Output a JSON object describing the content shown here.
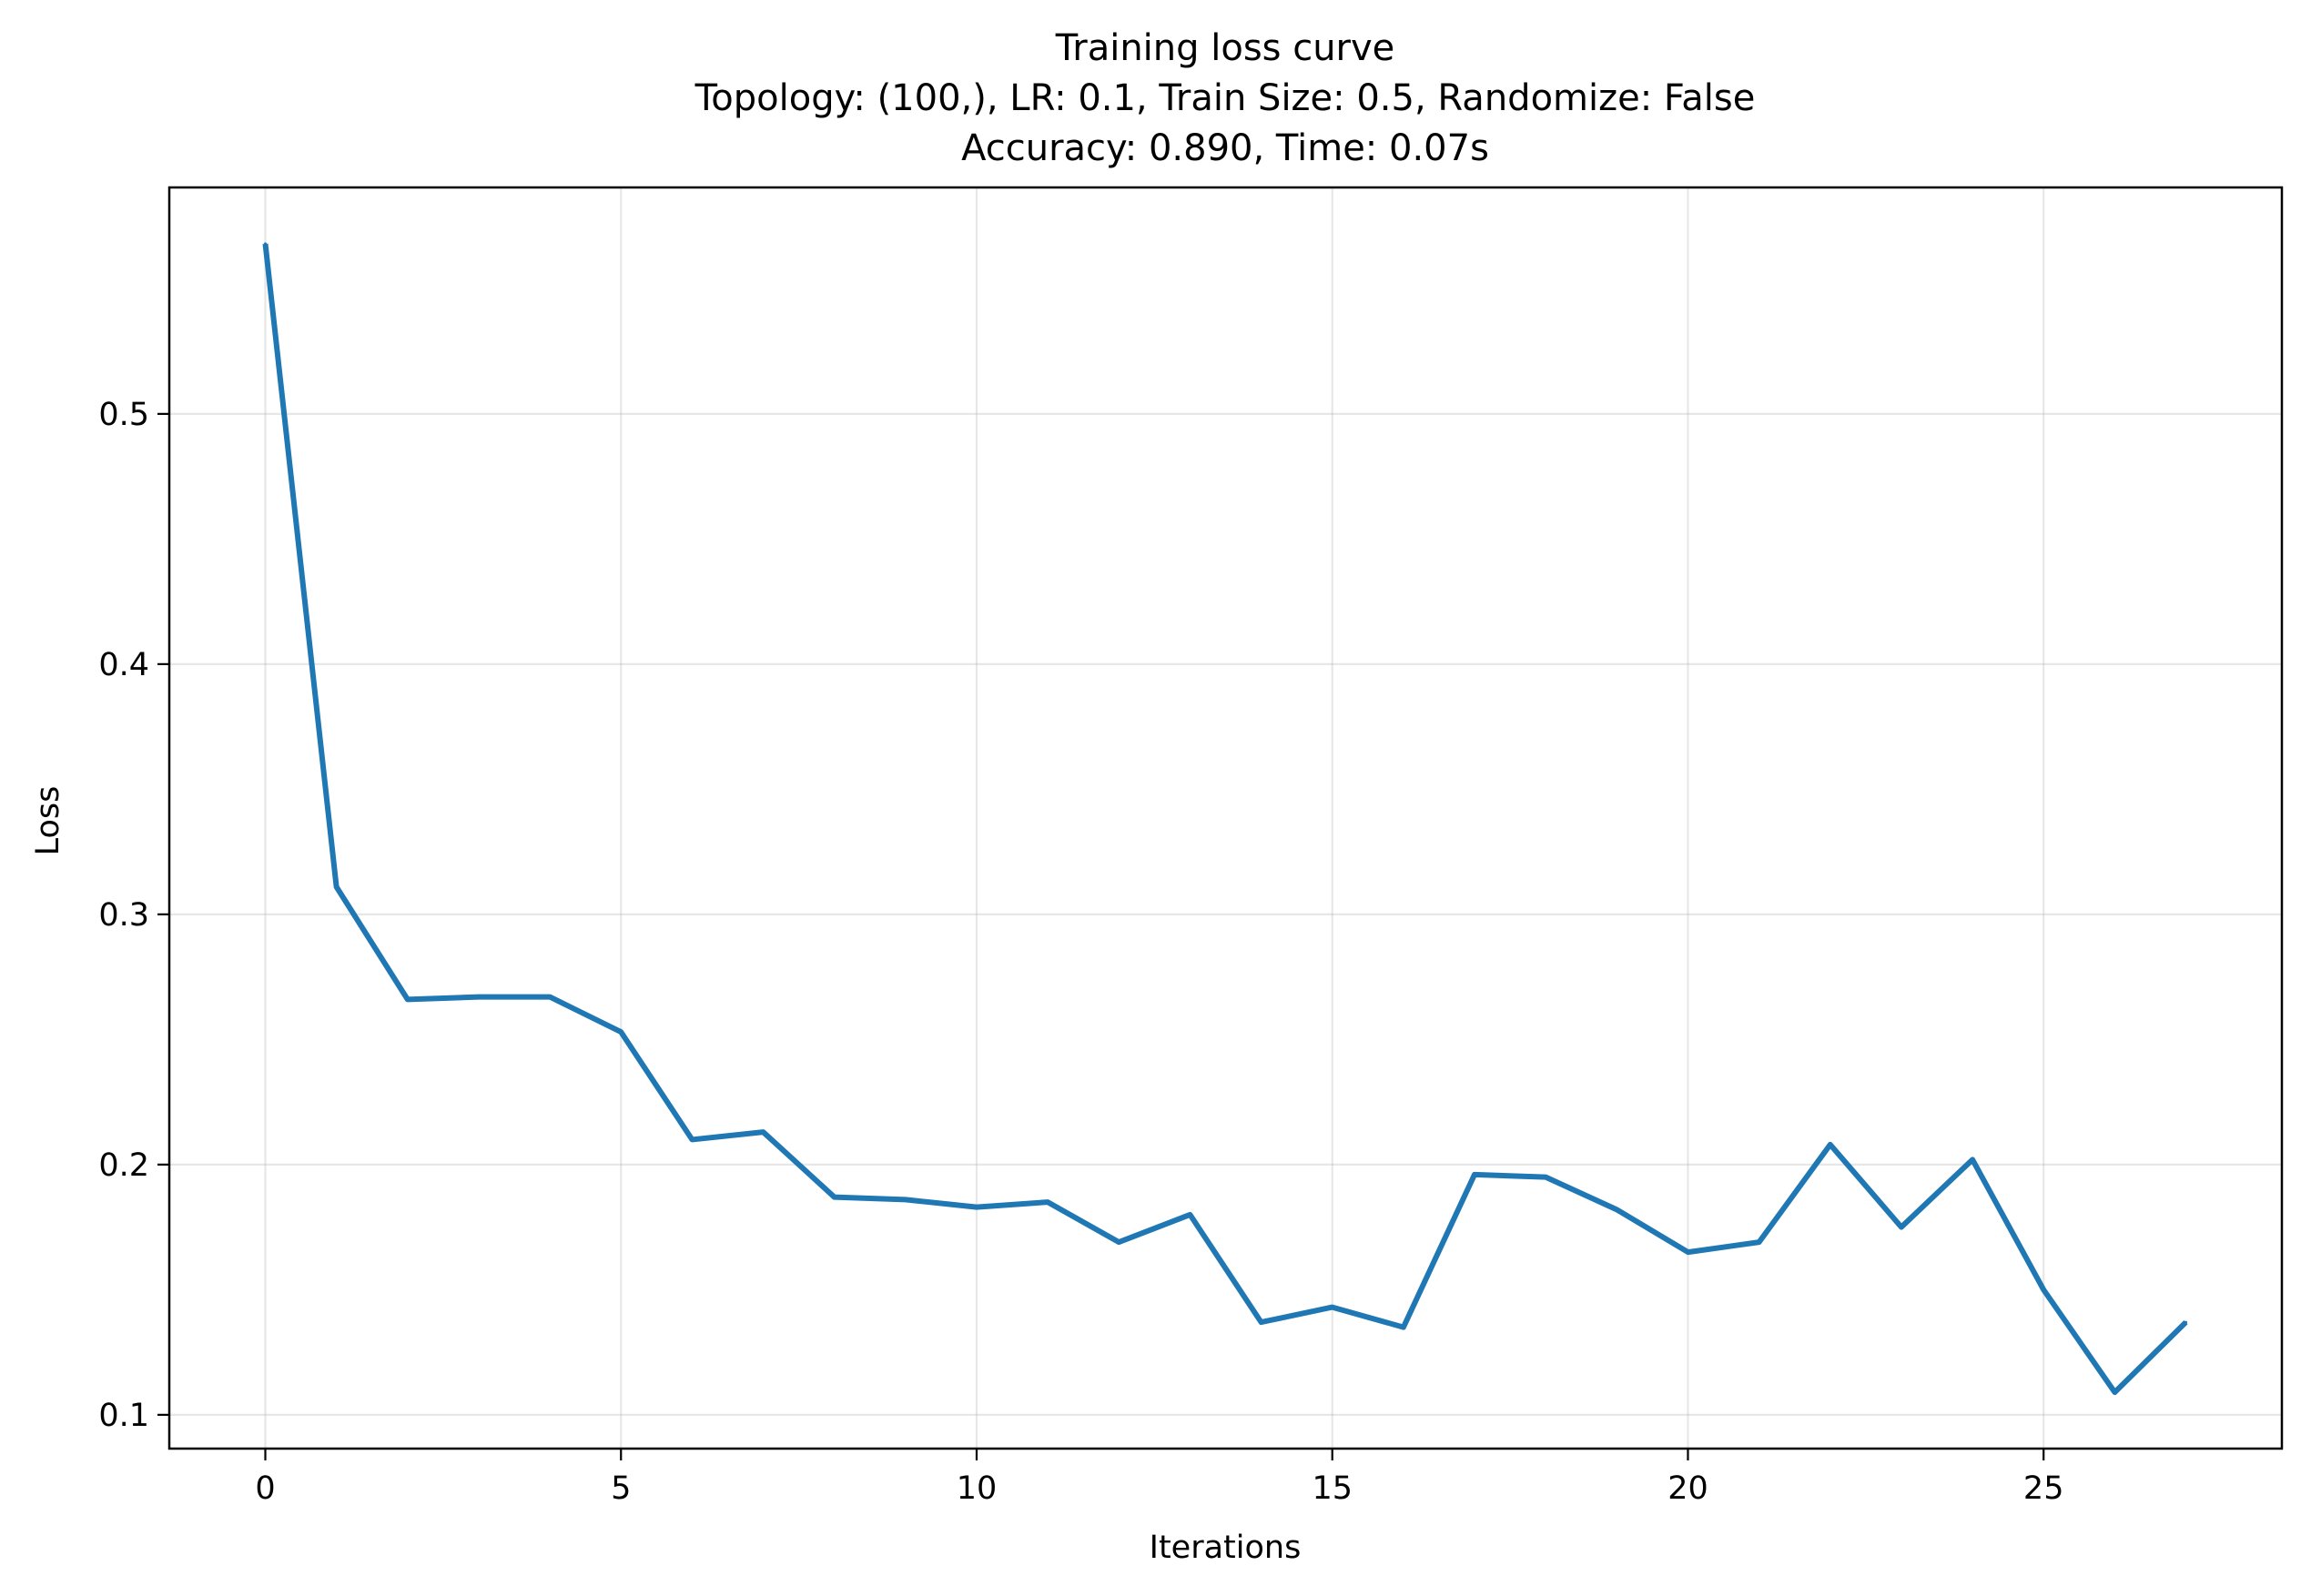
{
  "chart_data": {
    "type": "line",
    "title_lines": [
      "Training loss curve",
      "Topology: (100,), LR: 0.1, Train Size: 0.5, Randomize: False",
      "Accuracy: 0.890, Time: 0.07s"
    ],
    "xlabel": "Iterations",
    "ylabel": "Loss",
    "xlim": [
      -1.35,
      28.35
    ],
    "ylim": [
      0.0865,
      0.5905
    ],
    "xticks": [
      0,
      5,
      10,
      15,
      20,
      25
    ],
    "xtick_labels": [
      "0",
      "5",
      "10",
      "15",
      "20",
      "25"
    ],
    "yticks": [
      0.1,
      0.2,
      0.3,
      0.4,
      0.5
    ],
    "ytick_labels": [
      "0.1",
      "0.2",
      "0.3",
      "0.4",
      "0.5"
    ],
    "grid": true,
    "legend": "none",
    "series": [
      {
        "color": "#1f77b4",
        "x": [
          0,
          1,
          2,
          3,
          4,
          5,
          6,
          7,
          8,
          9,
          10,
          11,
          12,
          13,
          14,
          15,
          16,
          17,
          18,
          19,
          20,
          21,
          22,
          23,
          24,
          25,
          26,
          27
        ],
        "y": [
          0.568,
          0.311,
          0.266,
          0.267,
          0.267,
          0.253,
          0.21,
          0.213,
          0.187,
          0.186,
          0.183,
          0.185,
          0.169,
          0.18,
          0.137,
          0.143,
          0.135,
          0.196,
          0.195,
          0.182,
          0.165,
          0.169,
          0.208,
          0.175,
          0.202,
          0.15,
          0.109,
          0.137
        ]
      }
    ]
  }
}
